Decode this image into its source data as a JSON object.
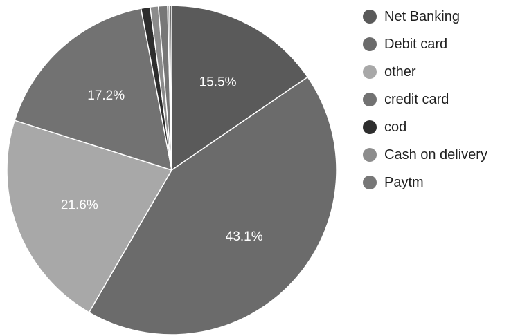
{
  "chart_data": {
    "type": "pie",
    "title": "",
    "legend_position": "right",
    "slices": [
      {
        "label": "Net Banking",
        "value": 15.5,
        "display": "15.5%",
        "color": "#5a5a5a"
      },
      {
        "label": "Debit card",
        "value": 43.1,
        "display": "43.1%",
        "color": "#6b6b6b"
      },
      {
        "label": "other",
        "value": 21.6,
        "display": "21.6%",
        "color": "#a8a8a8"
      },
      {
        "label": "credit card",
        "value": 17.2,
        "display": "17.2%",
        "color": "#727272"
      },
      {
        "label": "cod",
        "value": 0.9,
        "display": "",
        "color": "#2e2e2e"
      },
      {
        "label": "Cash on delivery",
        "value": 0.8,
        "display": "",
        "color": "#8c8c8c"
      },
      {
        "label": "Paytm",
        "value": 0.9,
        "display": "",
        "color": "#777777"
      }
    ],
    "extra_slivers": [
      {
        "value": 0.2,
        "color": "#b4b4b4"
      },
      {
        "value": 0.2,
        "color": "#6a6a6a"
      }
    ],
    "start_angle_deg": 0,
    "label_color": "#ffffff"
  }
}
